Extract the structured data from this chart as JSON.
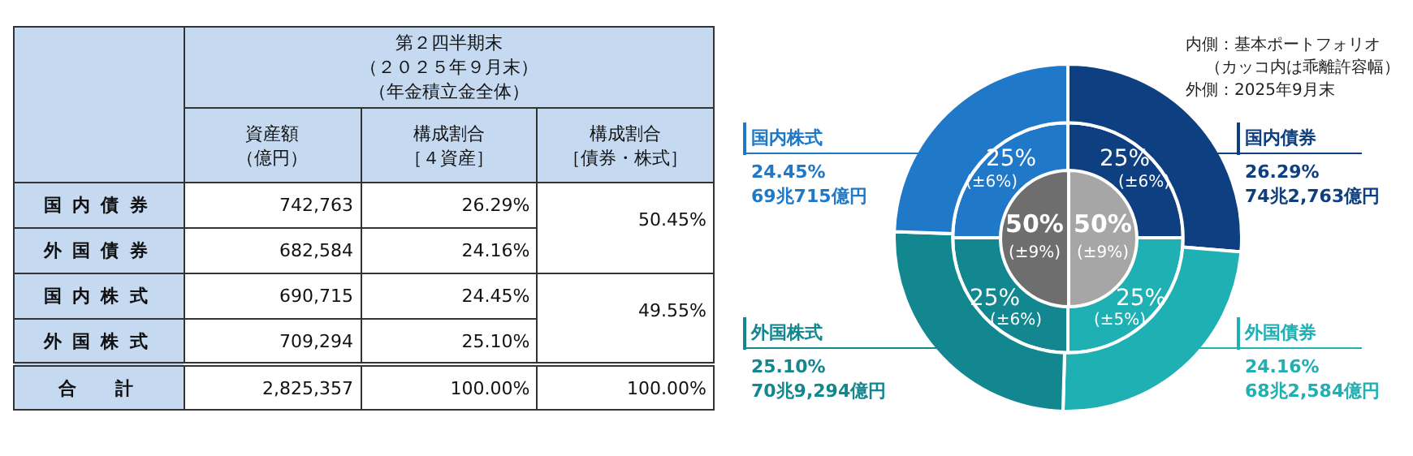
{
  "chart_data": [
    {
      "type": "other",
      "title": "第２四半期末（２０２５年９月末）（年金積立金全体）",
      "categories": [
        "国内債券",
        "外国債券",
        "国内株式",
        "外国株式",
        "合計"
      ],
      "series": [
        {
          "name": "資産額（億円）",
          "values": [
            742763,
            682584,
            690715,
            709294,
            2825357
          ],
          "value_labels": [
            "742,763",
            "682,584",
            "690,715",
            "709,294",
            "2,825,357"
          ]
        },
        {
          "name": "構成割合［４資産］",
          "values": [
            26.29,
            24.16,
            24.45,
            25.1,
            100.0
          ],
          "value_labels": [
            "26.29%",
            "24.16%",
            "24.45%",
            "25.10%",
            "100.00%"
          ]
        },
        {
          "name": "構成割合［債券・株式］",
          "values": [
            50.45,
            null,
            49.55,
            null,
            100.0
          ],
          "value_labels": [
            "50.45%",
            null,
            "49.55%",
            null,
            "100.00%"
          ]
        }
      ]
    },
    {
      "type": "donut",
      "legend": "top left",
      "categories": [
        "国内債券",
        "外国債券",
        "外国株式",
        "国内株式"
      ],
      "series": [
        {
          "values": [
            26.29,
            24.16,
            25.1,
            24.45
          ],
          "colors": [
            "#0e3f80",
            "#1fb0b3",
            "#13878f",
            "#1f78c8"
          ]
        },
        {
          "values": [
            25,
            25,
            25,
            25
          ],
          "colors": [
            "#0e3f80",
            "#1fb0b3",
            "#13878f",
            "#1f78c8"
          ],
          "value_labels": [
            "25%\n(±6%)",
            "25%\n(±5%)",
            "25%\n(±6%)",
            "25%\n(±6%)"
          ]
        }
      ],
      "annotations": [
        {
          "text": "26.29%\n74兆2,763億円",
          "x": "国内債券"
        },
        {
          "text": "24.16%\n68兆2,584億円",
          "x": "外国債券"
        },
        {
          "text": "25.10%\n70兆9,294億円",
          "x": "外国株式"
        },
        {
          "text": "24.45%\n69兆715億円",
          "x": "国内株式"
        },
        "内側：基本ポートフォリオ（カッコ内は乖離許容幅）",
        "外側：2025年9月末"
      ]
    },
    {
      "type": "pie",
      "categories": [
        null,
        null
      ],
      "values": [
        50,
        50
      ],
      "colors": [
        "#a6a6a6",
        "#6e6e6e"
      ],
      "value_labels": [
        "50%\n(±9%)",
        "50%\n(±9%)"
      ]
    }
  ]
}
